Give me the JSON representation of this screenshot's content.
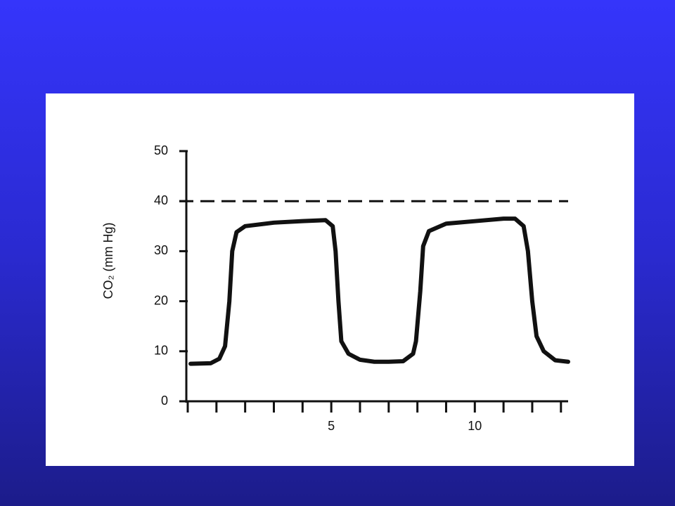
{
  "chart_data": {
    "type": "line",
    "y_label": "CO₂ (mm Hg)",
    "ylim": [
      0,
      50
    ],
    "yticks": [
      0,
      10,
      20,
      30,
      40,
      50
    ],
    "xlim": [
      0,
      13.25
    ],
    "xticks": [
      5,
      10
    ],
    "x_minor_ticks": [
      0,
      1,
      2,
      3,
      4,
      5,
      6,
      7,
      8,
      9,
      10,
      11,
      12,
      13
    ],
    "reference_line": 40,
    "color": "#111111",
    "x": [
      0.1,
      0.8,
      1.1,
      1.3,
      1.45,
      1.55,
      1.7,
      2,
      3,
      4,
      4.8,
      5.05,
      5.15,
      5.25,
      5.35,
      5.6,
      6,
      6.5,
      7,
      7.5,
      7.85,
      7.95,
      8.1,
      8.2,
      8.4,
      9,
      10,
      11,
      11.4,
      11.7,
      11.85,
      12,
      12.15,
      12.4,
      12.8,
      13.25
    ],
    "values": [
      7.5,
      7.6,
      8.5,
      11,
      20,
      30,
      33.8,
      35,
      35.7,
      36,
      36.2,
      35,
      30,
      20,
      12,
      9.5,
      8.3,
      7.9,
      7.9,
      8,
      9.5,
      12,
      22,
      31,
      34,
      35.5,
      36,
      36.5,
      36.5,
      35,
      30,
      20,
      13,
      10,
      8.2,
      7.9
    ]
  }
}
